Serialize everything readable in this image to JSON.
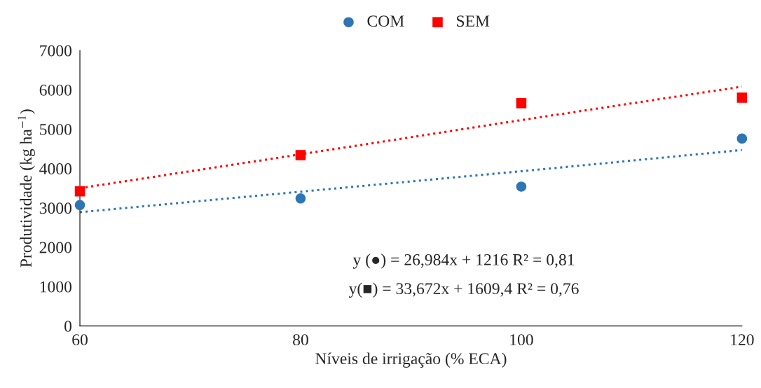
{
  "chart_data": {
    "type": "scatter",
    "xlabel": "Níveis de irrigação (% ECA)",
    "ylabel": "Produtividade (kg ha$^{−1}$)",
    "x": [
      60,
      80,
      100,
      120
    ],
    "series": [
      {
        "name": "COM",
        "color": "#2e75b6",
        "marker": "circle",
        "values": [
          3070,
          3240,
          3540,
          4760
        ]
      },
      {
        "name": "SEM",
        "color": "#ff0000",
        "marker": "square",
        "values": [
          3420,
          4340,
          5660,
          5800
        ]
      },
      {
        "type": "line",
        "color": "#2e75b6",
        "line_style": "dotted",
        "marker": "none",
        "values": [
          2890,
          3410,
          3930,
          4470
        ]
      },
      {
        "type": "line",
        "color": "#ff0000",
        "line_style": "dotted",
        "marker": "none",
        "values": [
          3500,
          4360,
          5230,
          6080
        ]
      }
    ],
    "xlim": [
      60,
      120
    ],
    "xticks": [
      60,
      80,
      100,
      120
    ],
    "ylim": [
      0,
      7000
    ],
    "yticks": [
      0,
      1000,
      2000,
      3000,
      4000,
      5000,
      6000,
      7000
    ],
    "grid": false,
    "legend": "top",
    "annotations": [
      "y (●) = 26,984x + 1216 R² = 0,81",
      "y(■) = 33,672x + 1609,4 R² = 0,76"
    ]
  }
}
